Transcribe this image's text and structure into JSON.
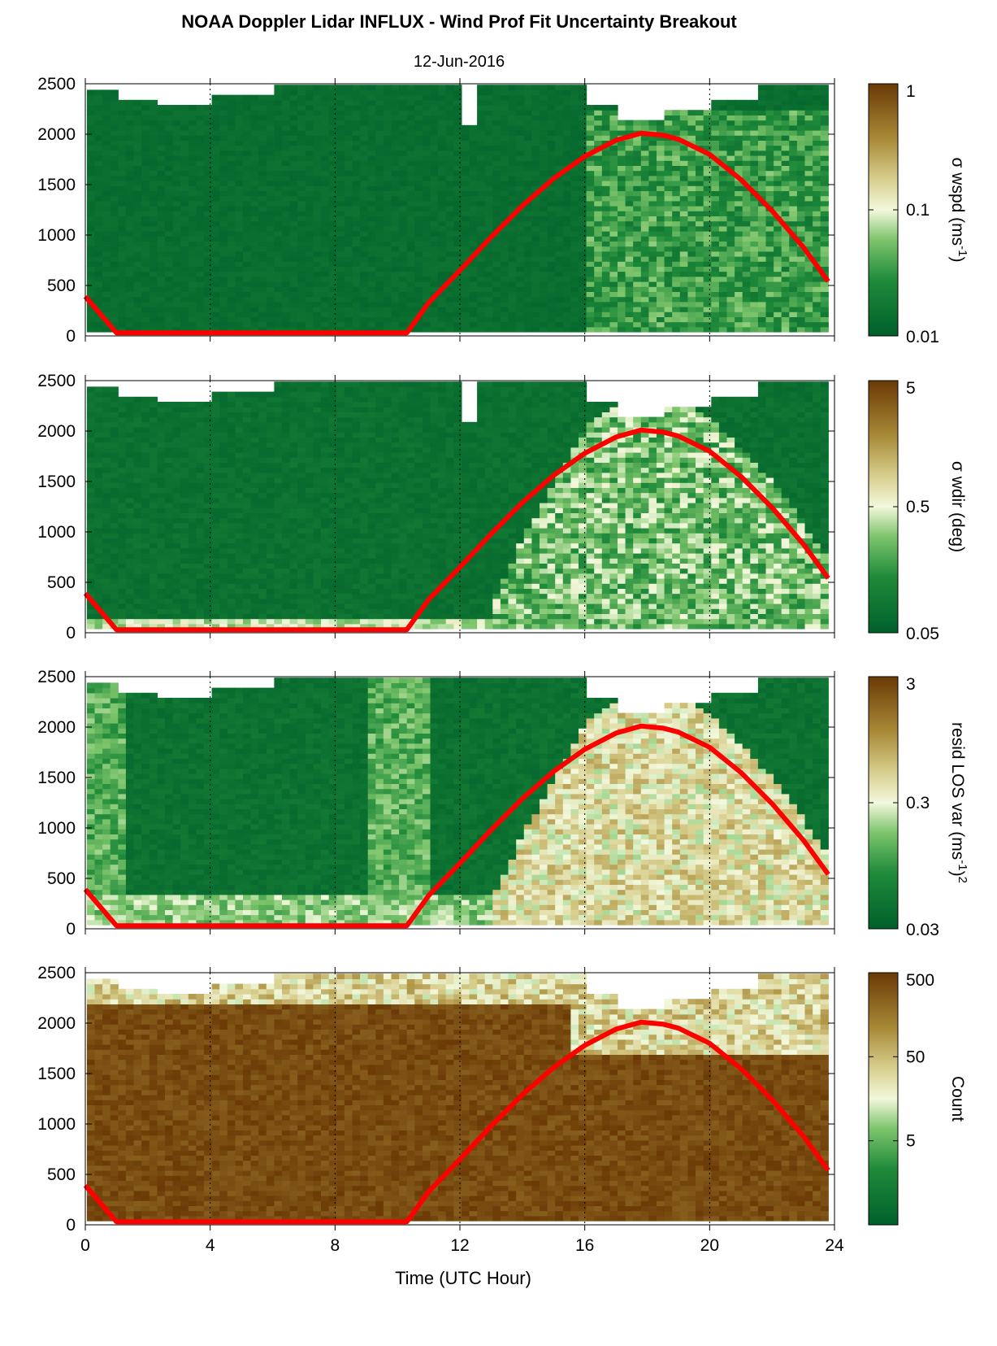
{
  "figure": {
    "title": "NOAA Doppler Lidar INFLUX - Wind Prof Fit Uncertainty Breakout",
    "subtitle": "12-Jun-2016",
    "xlabel": "Time (UTC Hour)"
  },
  "colors": {
    "low": "#00602b",
    "mid": "#f2f8dc",
    "high": "#6b3a06",
    "overlay": "#ff0000"
  },
  "chart_data": [
    {
      "type": "heatmap",
      "colorbar_label": "σ wspd (ms",
      "colorbar_label_sup": "-1",
      "colorbar_label_tail": ")",
      "color_scale": "log",
      "clim": [
        0.01,
        1
      ],
      "colorbar_ticks": [
        "1",
        "0.1",
        "0.01"
      ],
      "xlim": [
        0,
        24
      ],
      "ylim": [
        0,
        2500
      ],
      "xticks": [
        "0",
        "4",
        "8",
        "12",
        "16",
        "20",
        "24"
      ],
      "yticks": [
        "0",
        "500",
        "1000",
        "1500",
        "2000",
        "2500"
      ],
      "grid": "dotted vertical every 4 h"
    },
    {
      "type": "heatmap",
      "colorbar_label": "σ wdir (deg)",
      "color_scale": "log",
      "clim": [
        0.05,
        5
      ],
      "colorbar_ticks": [
        "5",
        "0.5",
        "0.05"
      ],
      "xlim": [
        0,
        24
      ],
      "ylim": [
        0,
        2500
      ],
      "xticks": [
        "0",
        "4",
        "8",
        "12",
        "16",
        "20",
        "24"
      ],
      "yticks": [
        "0",
        "500",
        "1000",
        "1500",
        "2000",
        "2500"
      ],
      "grid": "dotted vertical every 4 h"
    },
    {
      "type": "heatmap",
      "colorbar_label": "resid LOS var (ms",
      "colorbar_label_sup": "-1",
      "colorbar_label_tail": ")",
      "colorbar_label_sup2": "2",
      "color_scale": "log",
      "clim": [
        0.03,
        3
      ],
      "colorbar_ticks": [
        "3",
        "0.3",
        "0.03"
      ],
      "xlim": [
        0,
        24
      ],
      "ylim": [
        0,
        2500
      ],
      "xticks": [
        "0",
        "4",
        "8",
        "12",
        "16",
        "20",
        "24"
      ],
      "yticks": [
        "0",
        "500",
        "1000",
        "1500",
        "2000",
        "2500"
      ],
      "grid": "dotted vertical every 4 h"
    },
    {
      "type": "heatmap",
      "colorbar_label": "Count",
      "color_scale": "log",
      "clim": [
        0.5,
        500
      ],
      "colorbar_ticks": [
        "500",
        "50",
        "5"
      ],
      "xlim": [
        0,
        24
      ],
      "ylim": [
        0,
        2500
      ],
      "xticks": [
        "0",
        "4",
        "8",
        "12",
        "16",
        "20",
        "24"
      ],
      "yticks": [
        "0",
        "500",
        "1000",
        "1500",
        "2000",
        "2500"
      ],
      "grid": "dotted vertical every 4 h"
    }
  ],
  "overlay_line": {
    "color": "#ff0000",
    "x": [
      0,
      1,
      10.3,
      11,
      12,
      13,
      14,
      15,
      16,
      17,
      17.8,
      18.5,
      19,
      20,
      21,
      22,
      23,
      23.8
    ],
    "y": [
      390,
      30,
      30,
      330,
      650,
      980,
      1290,
      1560,
      1780,
      1940,
      2010,
      1990,
      1950,
      1800,
      1550,
      1240,
      880,
      540
    ]
  }
}
